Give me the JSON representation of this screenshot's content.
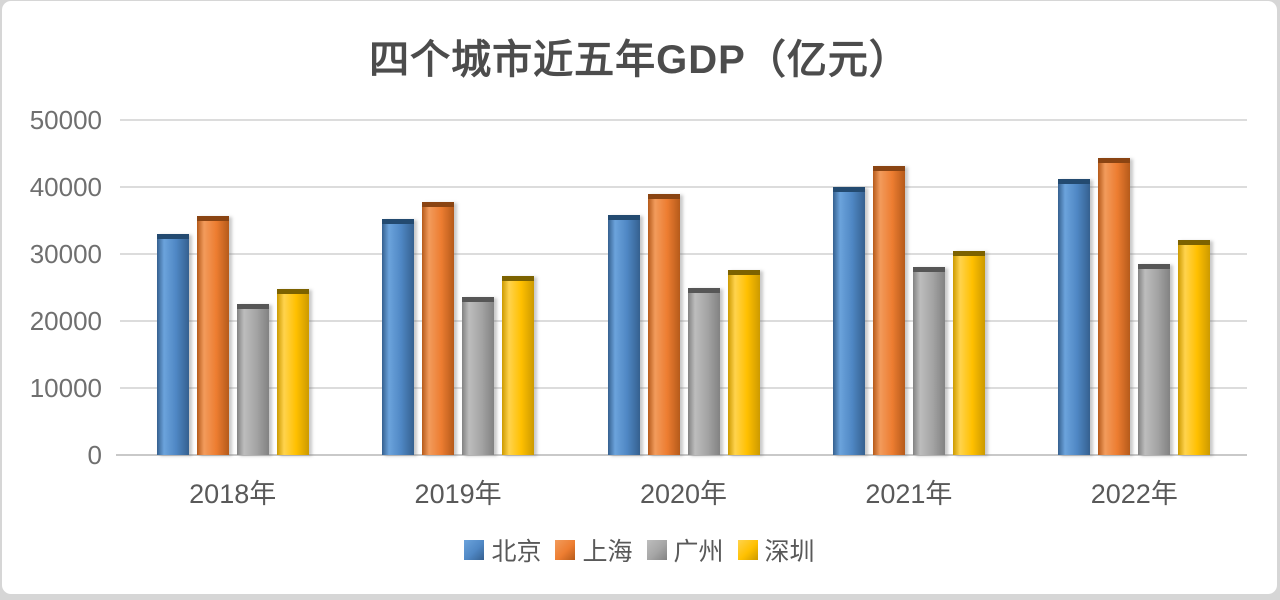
{
  "page": {
    "background_color": "#d6d6d6",
    "card_color": "#ffffff"
  },
  "chart_data": {
    "type": "bar",
    "title": "四个城市近五年GDP（亿元）",
    "title_color": "#4c4c4c",
    "categories": [
      "2018年",
      "2019年",
      "2020年",
      "2021年",
      "2022年"
    ],
    "series": [
      {
        "name": "北京",
        "key": "beijing",
        "color": "#4f87c4",
        "color_light": "#6ba3dc",
        "color_dark": "#35608f",
        "cap_color": "#234a70",
        "values": [
          33000,
          35300,
          35800,
          40000,
          41200
        ]
      },
      {
        "name": "上海",
        "key": "shanghai",
        "color": "#ed7d31",
        "color_light": "#f29b5c",
        "color_dark": "#b55a1a",
        "cap_color": "#8a4412",
        "values": [
          35700,
          37700,
          38900,
          43100,
          44400
        ]
      },
      {
        "name": "广州",
        "key": "guangzhou",
        "color": "#a5a5a5",
        "color_light": "#bdbdbd",
        "color_dark": "#828282",
        "cap_color": "#565656",
        "values": [
          22500,
          23600,
          24900,
          28000,
          28500
        ]
      },
      {
        "name": "深圳",
        "key": "shenzhen",
        "color": "#ffc000",
        "color_light": "#ffd34d",
        "color_dark": "#cc9a00",
        "cap_color": "#7c6200",
        "values": [
          24800,
          26700,
          27600,
          30400,
          32100
        ]
      }
    ],
    "ylim": [
      0,
      50000
    ],
    "yticks": [
      0,
      10000,
      20000,
      30000,
      40000,
      50000
    ],
    "grid": true,
    "gridline_color": "#dcdcdc",
    "legend_position": "bottom"
  }
}
